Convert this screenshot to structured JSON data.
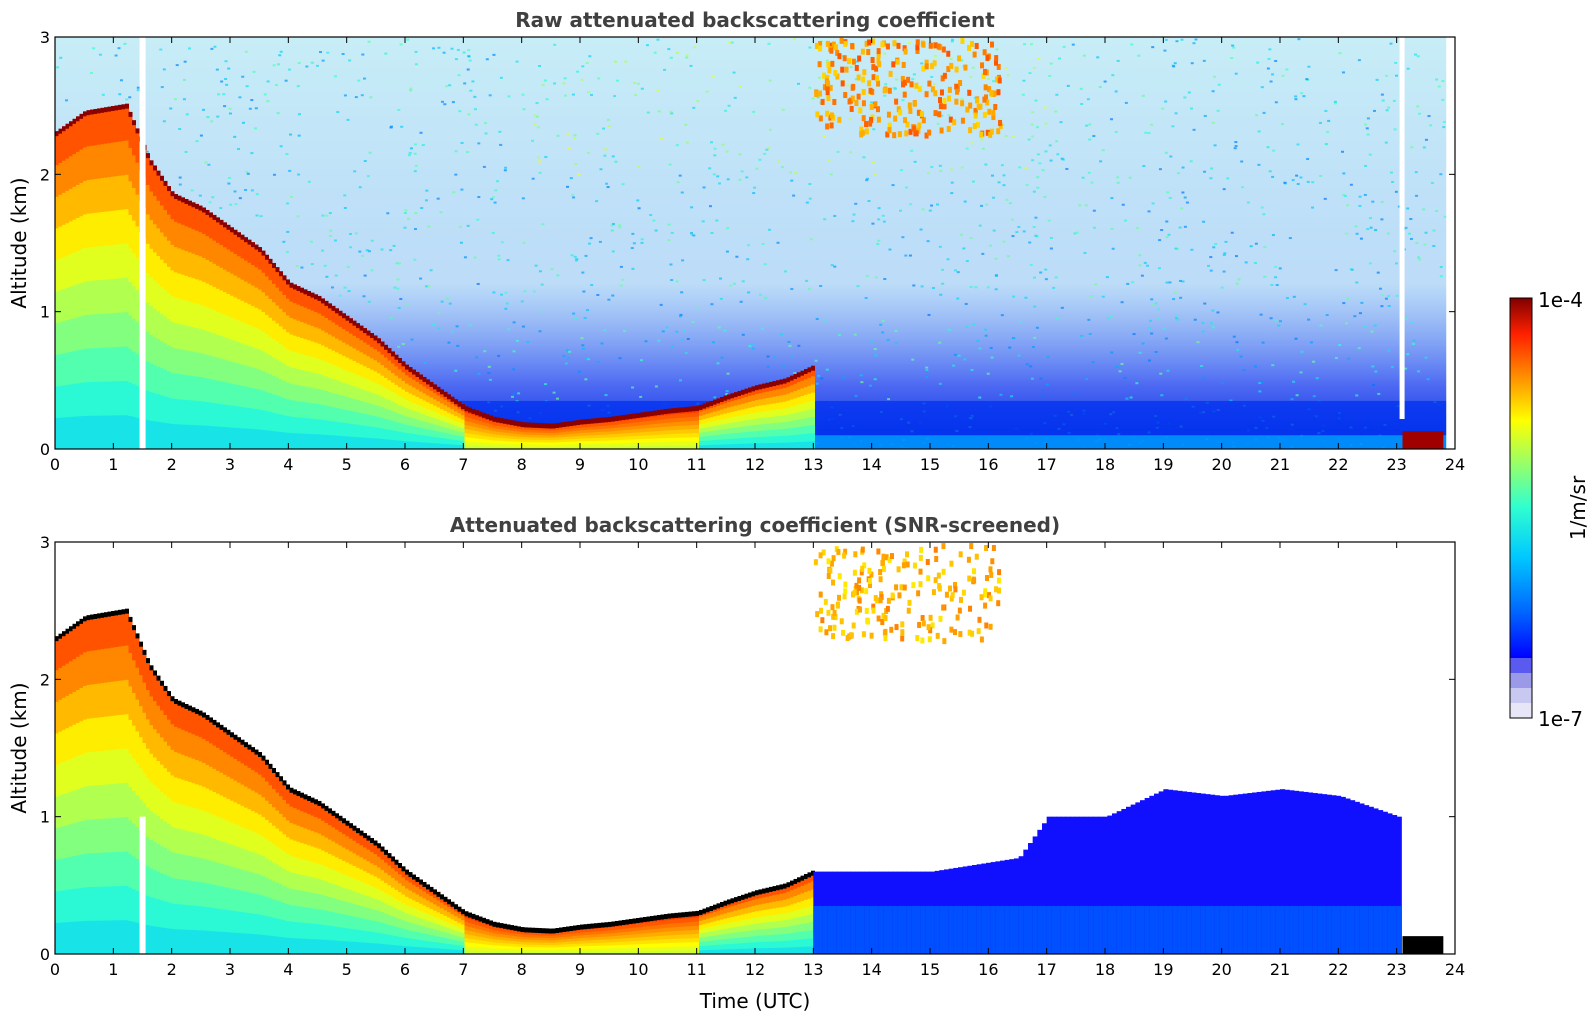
{
  "chart_data": [
    {
      "type": "heatmap",
      "title": "Raw attenuated backscattering coefficient",
      "xlabel": "",
      "ylabel": "Altitude (km)",
      "xlim": [
        0,
        24
      ],
      "ylim": [
        0,
        3
      ],
      "xticks": [
        "0",
        "1",
        "2",
        "3",
        "4",
        "5",
        "6",
        "7",
        "8",
        "9",
        "10",
        "11",
        "12",
        "13",
        "14",
        "15",
        "16",
        "17",
        "18",
        "19",
        "20",
        "21",
        "22",
        "23",
        "24"
      ],
      "yticks": [
        "0",
        "1",
        "2",
        "3"
      ],
      "layer_top_km": [
        {
          "t": 0.0,
          "z": 2.3
        },
        {
          "t": 0.5,
          "z": 2.45
        },
        {
          "t": 1.2,
          "z": 2.5
        },
        {
          "t": 1.6,
          "z": 2.1
        },
        {
          "t": 2.0,
          "z": 1.85
        },
        {
          "t": 2.5,
          "z": 1.75
        },
        {
          "t": 3.0,
          "z": 1.6
        },
        {
          "t": 3.5,
          "z": 1.45
        },
        {
          "t": 4.0,
          "z": 1.2
        },
        {
          "t": 4.5,
          "z": 1.1
        },
        {
          "t": 5.0,
          "z": 0.95
        },
        {
          "t": 5.5,
          "z": 0.8
        },
        {
          "t": 6.0,
          "z": 0.6
        },
        {
          "t": 6.5,
          "z": 0.45
        },
        {
          "t": 7.0,
          "z": 0.3
        },
        {
          "t": 7.5,
          "z": 0.22
        },
        {
          "t": 8.0,
          "z": 0.18
        },
        {
          "t": 8.5,
          "z": 0.17
        },
        {
          "t": 9.0,
          "z": 0.2
        },
        {
          "t": 9.5,
          "z": 0.22
        },
        {
          "t": 10.0,
          "z": 0.25
        },
        {
          "t": 10.5,
          "z": 0.28
        },
        {
          "t": 11.0,
          "z": 0.3
        },
        {
          "t": 11.5,
          "z": 0.38
        },
        {
          "t": 12.0,
          "z": 0.45
        },
        {
          "t": 12.5,
          "z": 0.5
        },
        {
          "t": 13.0,
          "z": 0.6
        }
      ],
      "upper_cloud": {
        "t_start": 13.0,
        "t_end": 16.2,
        "z_bottom": 2.3,
        "z_top": 3.0
      },
      "low_cloud_end": {
        "t_start": 23.1,
        "t_end": 23.8,
        "z": 0.08
      }
    },
    {
      "type": "heatmap",
      "title": "Attenuated backscattering coefficient (SNR-screened)",
      "xlabel": "Time (UTC)",
      "ylabel": "Altitude (km)",
      "xlim": [
        0,
        24
      ],
      "ylim": [
        0,
        3
      ],
      "xticks": [
        "0",
        "1",
        "2",
        "3",
        "4",
        "5",
        "6",
        "7",
        "8",
        "9",
        "10",
        "11",
        "12",
        "13",
        "14",
        "15",
        "16",
        "17",
        "18",
        "19",
        "20",
        "21",
        "22",
        "23",
        "24"
      ],
      "yticks": [
        "0",
        "1",
        "2",
        "3"
      ],
      "screened_aerosol_top_km": [
        {
          "t": 13.0,
          "z": 0.6
        },
        {
          "t": 15.0,
          "z": 0.6
        },
        {
          "t": 16.5,
          "z": 0.7
        },
        {
          "t": 17.0,
          "z": 1.0
        },
        {
          "t": 18.0,
          "z": 1.0
        },
        {
          "t": 19.0,
          "z": 1.2
        },
        {
          "t": 20.0,
          "z": 1.15
        },
        {
          "t": 21.0,
          "z": 1.2
        },
        {
          "t": 22.0,
          "z": 1.15
        },
        {
          "t": 23.0,
          "z": 1.0
        }
      ]
    }
  ],
  "colorbar": {
    "label": "1/m/sr",
    "max_label": "1e-4",
    "min_label": "1e-7",
    "colors": [
      "#0000ff",
      "#0080ff",
      "#00d0ff",
      "#40ffc0",
      "#a0ff60",
      "#ffff00",
      "#ff9000",
      "#ff2000",
      "#c00000",
      "#800000"
    ],
    "low_colors": [
      "#e6e6f7",
      "#c8c8f0",
      "#9a9ae8",
      "#5a5af0"
    ]
  }
}
